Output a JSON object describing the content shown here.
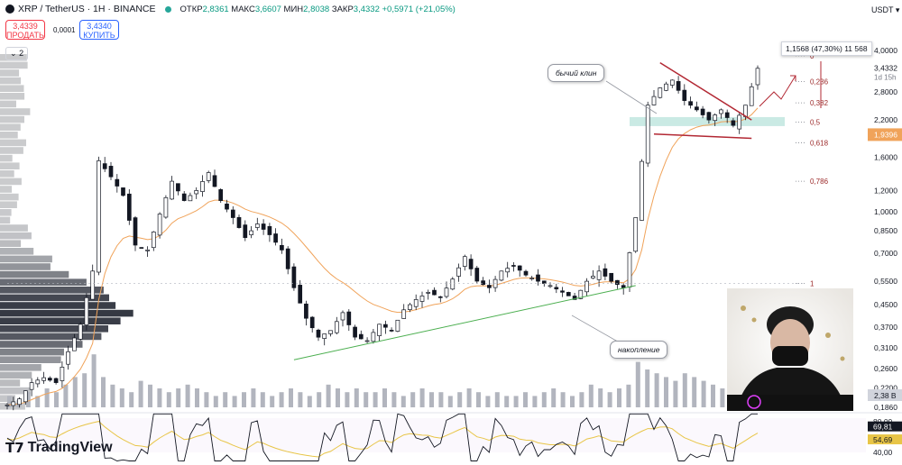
{
  "header": {
    "symbol": "XRP / TetherUS · 1H · BINANCE",
    "open_label": "ОТКР",
    "open_value": "2,8361",
    "high_label": "МАКС",
    "high_value": "3,6607",
    "low_label": "МИН",
    "low_value": "2,8038",
    "close_label": "ЗАКР",
    "close_value": "3,4332",
    "change": "+0,5971 (+21,05%)"
  },
  "trade": {
    "sell_price": "3,4339",
    "sell_label": "ПРОДАТЬ",
    "spread": "0,0001",
    "buy_price": "3,4340",
    "buy_label": "КУПИТЬ"
  },
  "indicator_toggle": "2",
  "currency": "USDT",
  "measure_label": "1,1568 (47,30%) 11 568",
  "annotations": {
    "wedge": "бычий клин",
    "accumulation": "накопление"
  },
  "brand": "TradingView",
  "colors": {
    "up": "#089981",
    "down": "#f23645",
    "candle": "#131722",
    "ma": "#f0a35a",
    "support": "#4caf50",
    "wedge": "#b22833",
    "zone": "#bde5dd",
    "rsi": "#131722",
    "rsi_ma": "#e8c547",
    "volume": "#b2b5be",
    "profile": "#2a2e39"
  },
  "chart_data": {
    "type": "candlestick",
    "scale": "log",
    "y_ticks": [
      "4,0000",
      "3,4332",
      "2,8000",
      "2,2000",
      "1,9396",
      "1,6000",
      "1,2000",
      "1,0000",
      "0,8500",
      "0,7000",
      "0,5500",
      "0,4500",
      "0,3700",
      "0,3100",
      "0,2600",
      "0,2200",
      "0,1860"
    ],
    "price_axis_ticks": [
      4.0,
      2.8,
      2.2,
      1.6,
      1.2,
      1.0,
      0.85,
      0.7,
      0.55,
      0.45,
      0.37,
      0.31,
      0.26,
      0.22,
      0.186
    ],
    "last_price": "3,4332",
    "last_price_countdown": "1d 15h",
    "ma_value_label": "1,9396",
    "volume_label": "2,38 B",
    "fib_levels": [
      {
        "label": "0",
        "price": 3.82
      },
      {
        "label": "0,236",
        "price": 3.06
      },
      {
        "label": "0,382",
        "price": 2.55
      },
      {
        "label": "0,5",
        "price": 2.16
      },
      {
        "label": "0,618",
        "price": 1.81
      },
      {
        "label": "0,786",
        "price": 1.3
      },
      {
        "label": "1",
        "price": 0.54
      }
    ],
    "close_path": [
      [
        0,
        0.19
      ],
      [
        2,
        0.2
      ],
      [
        4,
        0.23
      ],
      [
        6,
        0.24
      ],
      [
        8,
        0.23
      ],
      [
        10,
        0.3
      ],
      [
        12,
        0.38
      ],
      [
        14,
        0.6
      ],
      [
        15,
        1.55
      ],
      [
        17,
        1.35
      ],
      [
        19,
        1.15
      ],
      [
        21,
        0.75
      ],
      [
        23,
        0.72
      ],
      [
        25,
        0.98
      ],
      [
        27,
        1.3
      ],
      [
        29,
        1.1
      ],
      [
        31,
        1.2
      ],
      [
        33,
        1.4
      ],
      [
        35,
        1.1
      ],
      [
        37,
        0.95
      ],
      [
        39,
        0.8
      ],
      [
        41,
        0.9
      ],
      [
        43,
        0.82
      ],
      [
        45,
        0.72
      ],
      [
        47,
        0.52
      ],
      [
        49,
        0.4
      ],
      [
        51,
        0.34
      ],
      [
        53,
        0.36
      ],
      [
        55,
        0.42
      ],
      [
        57,
        0.34
      ],
      [
        59,
        0.33
      ],
      [
        61,
        0.38
      ],
      [
        63,
        0.36
      ],
      [
        65,
        0.43
      ],
      [
        67,
        0.47
      ],
      [
        69,
        0.5
      ],
      [
        71,
        0.48
      ],
      [
        73,
        0.56
      ],
      [
        75,
        0.68
      ],
      [
        77,
        0.55
      ],
      [
        79,
        0.52
      ],
      [
        81,
        0.6
      ],
      [
        83,
        0.63
      ],
      [
        85,
        0.58
      ],
      [
        87,
        0.55
      ],
      [
        89,
        0.53
      ],
      [
        91,
        0.5
      ],
      [
        93,
        0.47
      ],
      [
        95,
        0.55
      ],
      [
        97,
        0.6
      ],
      [
        99,
        0.55
      ],
      [
        101,
        0.52
      ],
      [
        103,
        0.95
      ],
      [
        105,
        2.5
      ],
      [
        107,
        2.9
      ],
      [
        109,
        3.1
      ],
      [
        111,
        2.6
      ],
      [
        113,
        2.4
      ],
      [
        115,
        2.2
      ],
      [
        117,
        2.4
      ],
      [
        119,
        2.1
      ],
      [
        121,
        2.5
      ],
      [
        123,
        3.43
      ]
    ],
    "volume": [
      3,
      2,
      4,
      3,
      5,
      4,
      6,
      8,
      9,
      14,
      8,
      6,
      5,
      4,
      7,
      6,
      5,
      4,
      5,
      6,
      5,
      4,
      3,
      4,
      3,
      4,
      5,
      4,
      3,
      4,
      5,
      4,
      3,
      4,
      6,
      5,
      4,
      5,
      4,
      4,
      5,
      4,
      3,
      4,
      5,
      4,
      4,
      3,
      4,
      5,
      4,
      3,
      4,
      3,
      3,
      4,
      3,
      4,
      5,
      4,
      3,
      4,
      6,
      5,
      4,
      5,
      6,
      12,
      10,
      9,
      8,
      7,
      9,
      8,
      7,
      6,
      5,
      4,
      6,
      7
    ],
    "rsi": {
      "value": "69,81",
      "ma_value": "54,69",
      "upper": "80,00",
      "lower": "40,00",
      "upper_value": 80,
      "lower_value": 40
    }
  }
}
